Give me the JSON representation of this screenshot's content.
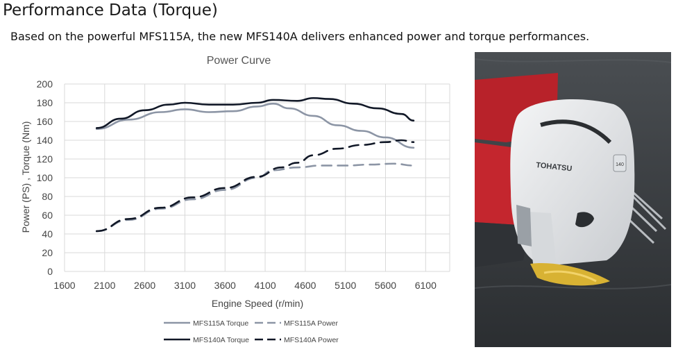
{
  "page": {
    "title": "Performance Data (Torque)",
    "subtitle": "Based on the powerful MFS115A, the new MFS140A delivers enhanced power and torque performances."
  },
  "photo": {
    "brand_logo_text": "TOHATSU",
    "badge_text": "140"
  },
  "chart_data": {
    "type": "line",
    "title": "Power Curve",
    "xlabel": "Engine Speed (r/min)",
    "ylabel": "Power (PS) , Torque (Nm)",
    "xlim": [
      1600,
      6400
    ],
    "ylim": [
      0,
      200
    ],
    "x_ticks": [
      1600,
      2100,
      2600,
      3100,
      3600,
      4100,
      4600,
      5100,
      5600,
      6100
    ],
    "y_ticks": [
      0,
      20,
      40,
      60,
      80,
      100,
      120,
      140,
      160,
      180,
      200
    ],
    "grid": true,
    "legend_position": "bottom",
    "colors": {
      "mfs115a": "#8c95a5",
      "mfs140a": "#111827"
    },
    "series": [
      {
        "name": "MFS115A Torque",
        "style": "solid",
        "color": "#8c95a5",
        "x": [
          2000,
          2400,
          2800,
          3100,
          3400,
          3700,
          4000,
          4200,
          4400,
          4700,
          5000,
          5300,
          5600,
          5950
        ],
        "y": [
          152,
          162,
          170,
          173,
          170,
          171,
          176,
          179,
          174,
          166,
          156,
          150,
          143,
          132
        ]
      },
      {
        "name": "MFS115A Power",
        "style": "dashed",
        "color": "#8c95a5",
        "x": [
          2000,
          2400,
          2800,
          3200,
          3600,
          4000,
          4200,
          4500,
          4800,
          5100,
          5400,
          5700,
          5950
        ],
        "y": [
          43,
          55,
          67,
          77,
          87,
          100,
          108,
          111,
          113,
          113,
          114,
          115,
          113
        ]
      },
      {
        "name": "MFS140A Torque",
        "style": "solid",
        "color": "#111827",
        "x": [
          2000,
          2300,
          2600,
          2900,
          3100,
          3400,
          3700,
          4000,
          4200,
          4500,
          4700,
          4900,
          5200,
          5500,
          5800,
          5950
        ],
        "y": [
          153,
          163,
          172,
          178,
          180,
          178,
          178,
          180,
          183,
          182,
          185,
          184,
          179,
          174,
          168,
          161
        ]
      },
      {
        "name": "MFS140A Power",
        "style": "dashed",
        "color": "#111827",
        "x": [
          2000,
          2400,
          2800,
          3200,
          3600,
          4000,
          4300,
          4500,
          4700,
          5000,
          5300,
          5600,
          5800,
          5950
        ],
        "y": [
          43,
          56,
          68,
          79,
          89,
          101,
          111,
          116,
          124,
          131,
          135,
          138,
          140,
          138
        ]
      }
    ]
  }
}
